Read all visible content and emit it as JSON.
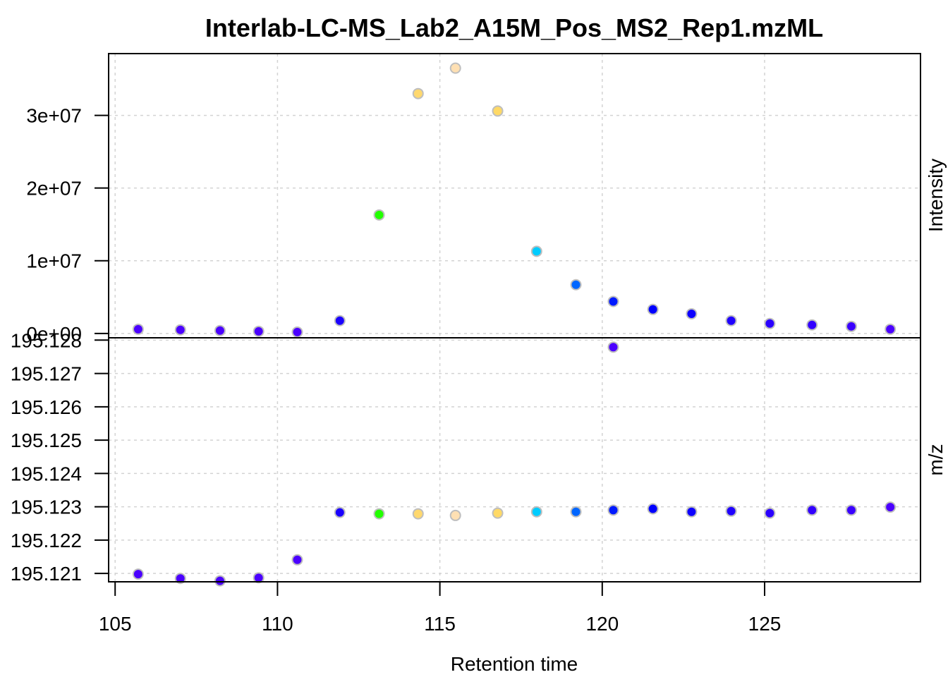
{
  "chart_data": [
    {
      "type": "scatter",
      "panel": "top",
      "title": "Interlab-LC-MS_Lab2_A15M_Pos_MS2_Rep1.mzML",
      "xlabel": "Retention time",
      "ylabel": "Intensity",
      "ylabel_side": "right",
      "xlim": [
        104.8,
        129.8
      ],
      "ylim": [
        -600000,
        38500000
      ],
      "x_ticks": [
        105,
        110,
        115,
        120,
        125
      ],
      "x_tick_labels": [
        "105",
        "110",
        "115",
        "120",
        "125"
      ],
      "y_ticks": [
        0,
        10000000,
        20000000,
        30000000
      ],
      "y_tick_labels": [
        "0e+00",
        "1e+07",
        "2e+07",
        "3e+07"
      ],
      "grid": true,
      "points": [
        {
          "x": 105.71,
          "y": 580000,
          "color": "#4B00FF"
        },
        {
          "x": 107.01,
          "y": 490000,
          "color": "#4B00FF"
        },
        {
          "x": 108.23,
          "y": 390000,
          "color": "#4B00FF"
        },
        {
          "x": 109.42,
          "y": 290000,
          "color": "#4B00FF"
        },
        {
          "x": 110.61,
          "y": 190000,
          "color": "#4B00FF"
        },
        {
          "x": 111.92,
          "y": 1750000,
          "color": "#1A00FF"
        },
        {
          "x": 113.13,
          "y": 16300000,
          "color": "#22FF00"
        },
        {
          "x": 114.33,
          "y": 33000000,
          "color": "#FFD86E"
        },
        {
          "x": 115.48,
          "y": 36500000,
          "color": "#FFE0B3"
        },
        {
          "x": 116.78,
          "y": 30600000,
          "color": "#FFD966"
        },
        {
          "x": 117.98,
          "y": 11300000,
          "color": "#00CCFF"
        },
        {
          "x": 119.19,
          "y": 6700000,
          "color": "#0066FF"
        },
        {
          "x": 120.34,
          "y": 4400000,
          "color": "#0019FF"
        },
        {
          "x": 121.56,
          "y": 3300000,
          "color": "#0000FF"
        },
        {
          "x": 122.75,
          "y": 2700000,
          "color": "#0D00FF"
        },
        {
          "x": 123.97,
          "y": 1750000,
          "color": "#1F00FF"
        },
        {
          "x": 125.16,
          "y": 1360000,
          "color": "#2A00FF"
        },
        {
          "x": 126.46,
          "y": 1170000,
          "color": "#3200FF"
        },
        {
          "x": 127.67,
          "y": 970000,
          "color": "#3A00FF"
        },
        {
          "x": 128.87,
          "y": 580000,
          "color": "#4B00FF"
        }
      ]
    },
    {
      "type": "scatter",
      "panel": "bottom",
      "xlabel": "Retention time",
      "ylabel": "m/z",
      "ylabel_side": "right",
      "xlim": [
        104.8,
        129.8
      ],
      "ylim": [
        195.12075,
        195.12807
      ],
      "x_ticks": [
        105,
        110,
        115,
        120,
        125
      ],
      "x_tick_labels": [
        "105",
        "110",
        "115",
        "120",
        "125"
      ],
      "y_ticks": [
        195.121,
        195.122,
        195.123,
        195.124,
        195.125,
        195.126,
        195.127,
        195.128
      ],
      "y_tick_labels": [
        "195.121",
        "195.122",
        "195.123",
        "195.124",
        "195.125",
        "195.126",
        "195.127",
        "195.128"
      ],
      "grid": true,
      "points": [
        {
          "x": 105.71,
          "y": 195.12098,
          "color": "#4B00FF"
        },
        {
          "x": 107.01,
          "y": 195.12085,
          "color": "#4B00FF"
        },
        {
          "x": 108.23,
          "y": 195.12078,
          "color": "#4B00FF"
        },
        {
          "x": 109.42,
          "y": 195.12087,
          "color": "#4B00FF"
        },
        {
          "x": 110.61,
          "y": 195.12141,
          "color": "#4B00FF"
        },
        {
          "x": 111.92,
          "y": 195.12283,
          "color": "#1A00FF"
        },
        {
          "x": 113.13,
          "y": 195.12279,
          "color": "#22FF00"
        },
        {
          "x": 114.33,
          "y": 195.12279,
          "color": "#FFD86E"
        },
        {
          "x": 115.48,
          "y": 195.12274,
          "color": "#FFE0B3"
        },
        {
          "x": 116.78,
          "y": 195.12281,
          "color": "#FFD966"
        },
        {
          "x": 117.98,
          "y": 195.12285,
          "color": "#00CCFF"
        },
        {
          "x": 119.19,
          "y": 195.12285,
          "color": "#0066FF"
        },
        {
          "x": 120.34,
          "y": 195.1229,
          "color": "#0019FF"
        },
        {
          "x": 120.34,
          "y": 195.12779,
          "color": "#4B00FF"
        },
        {
          "x": 121.56,
          "y": 195.12294,
          "color": "#0000FF"
        },
        {
          "x": 122.75,
          "y": 195.12285,
          "color": "#0D00FF"
        },
        {
          "x": 123.97,
          "y": 195.12287,
          "color": "#1F00FF"
        },
        {
          "x": 125.16,
          "y": 195.12281,
          "color": "#2A00FF"
        },
        {
          "x": 126.46,
          "y": 195.1229,
          "color": "#3200FF"
        },
        {
          "x": 127.67,
          "y": 195.1229,
          "color": "#3A00FF"
        },
        {
          "x": 128.87,
          "y": 195.12299,
          "color": "#4B00FF"
        }
      ]
    }
  ],
  "style": {
    "point_border_color": "#BEBEBE",
    "grid_color": "#D3D3D3",
    "axis_color": "#000000"
  }
}
